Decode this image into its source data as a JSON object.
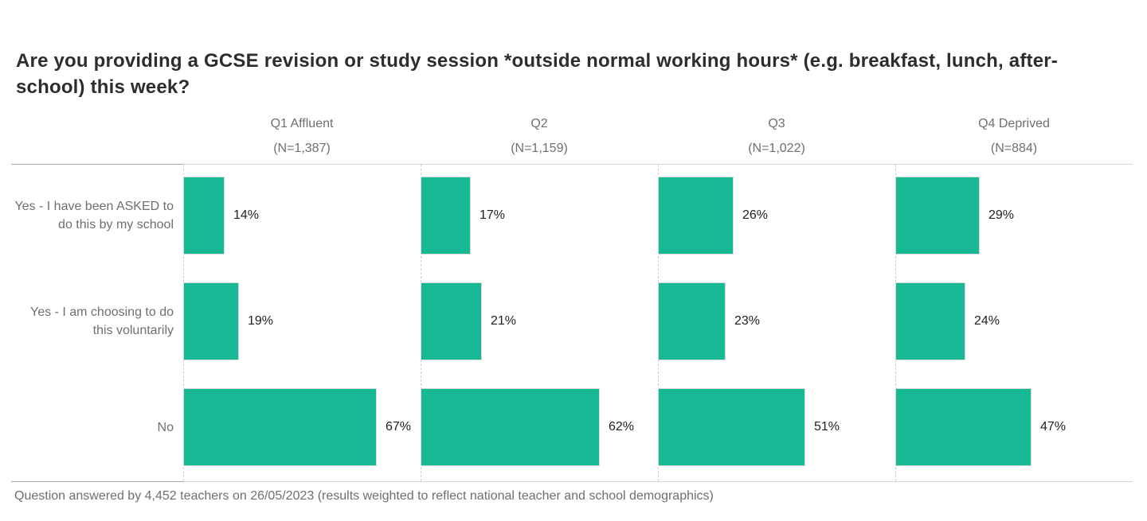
{
  "page": {
    "title": "Are you providing a GCSE revision or study session *outside normal working hours* (e.g. breakfast, lunch, after-school) this week?",
    "footnote": "Question answered by 4,452 teachers on 26/05/2023 (results weighted to reflect national teacher and school demographics)"
  },
  "colors": {
    "bar_fill": "#17b894",
    "bar_border": "#dadada",
    "rule_dark": "#a8a8a8",
    "rule_light": "#d6d6d6",
    "grid_dashed": "#cfcfcf",
    "title_text": "#2d2d2d",
    "muted_text": "#6f6f6f",
    "value_text": "#212121"
  },
  "chart_data": {
    "type": "bar",
    "orientation": "horizontal",
    "title": "Are you providing a GCSE revision or study session *outside normal working hours* (e.g. breakfast, lunch, after-school) this week?",
    "value_suffix": "%",
    "axis_max": 83,
    "grid": "dashed vertical separators at each column start",
    "legend_position": "none",
    "categories": [
      "Yes - I have been ASKED to do this by my school",
      "Yes - I am choosing to do this voluntarily",
      "No"
    ],
    "columns": [
      {
        "label": "Q1 Affluent",
        "n_label": "(N=1,387)",
        "values": [
          14,
          19,
          67
        ]
      },
      {
        "label": "Q2",
        "n_label": "(N=1,159)",
        "values": [
          17,
          21,
          62
        ]
      },
      {
        "label": "Q3",
        "n_label": "(N=1,022)",
        "values": [
          26,
          23,
          51
        ]
      },
      {
        "label": "Q4 Deprived",
        "n_label": "(N=884)",
        "values": [
          29,
          24,
          47
        ]
      }
    ],
    "footnote": "Question answered by 4,452 teachers on 26/05/2023 (results weighted to reflect national teacher and school demographics)"
  }
}
